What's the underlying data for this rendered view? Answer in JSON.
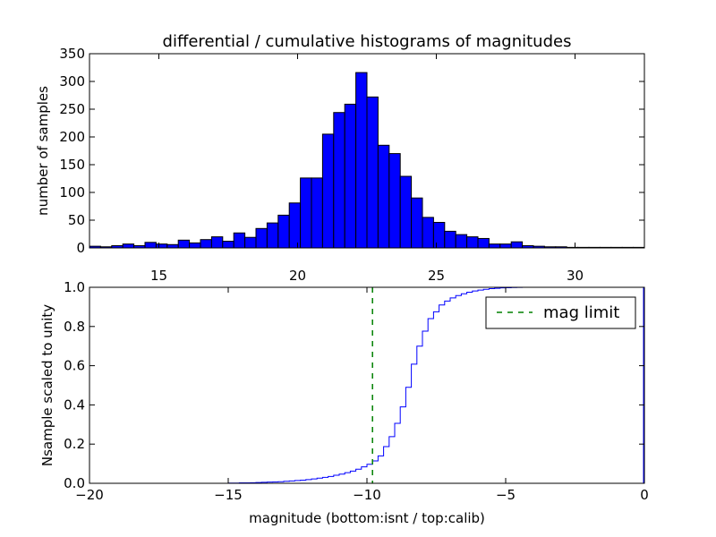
{
  "colors": {
    "bar_fill": "#0000ff",
    "step_line": "#0000ff",
    "mag_limit_line": "#008000",
    "axes": "#000000",
    "background": "#ffffff"
  },
  "chart_data": [
    {
      "type": "bar",
      "title": "differential / cumulative histograms of magnitudes",
      "xlabel": "",
      "ylabel": "number of samples",
      "xlim": [
        12.5,
        32.5
      ],
      "ylim": [
        0,
        350
      ],
      "xticks": [
        15,
        20,
        25,
        30
      ],
      "yticks": [
        0,
        50,
        100,
        150,
        200,
        250,
        300,
        350
      ],
      "xtick_position": "bottom",
      "grid": false,
      "bin_edges": [
        12.5,
        12.9,
        13.3,
        13.7,
        14.1,
        14.5,
        14.9,
        15.3,
        15.7,
        16.1,
        16.5,
        16.9,
        17.3,
        17.7,
        18.1,
        18.5,
        18.9,
        19.3,
        19.7,
        20.1,
        20.5,
        20.9,
        21.3,
        21.7,
        22.1,
        22.5,
        22.9,
        23.3,
        23.7,
        24.1,
        24.5,
        24.9,
        25.3,
        25.7,
        26.1,
        26.5,
        26.9,
        27.3,
        27.7,
        28.1,
        28.5,
        28.9,
        29.3,
        29.7,
        30.1,
        30.5,
        30.9,
        31.3,
        31.7,
        32.1,
        32.5
      ],
      "values": [
        3,
        2,
        4,
        7,
        4,
        10,
        7,
        6,
        14,
        9,
        15,
        20,
        12,
        27,
        19,
        35,
        45,
        59,
        81,
        126,
        126,
        205,
        244,
        259,
        316,
        272,
        185,
        170,
        129,
        90,
        55,
        46,
        30,
        24,
        20,
        17,
        7,
        7,
        11,
        4,
        3,
        2,
        2,
        1,
        1,
        1,
        1,
        1,
        1,
        1
      ]
    },
    {
      "type": "line",
      "title": "",
      "xlabel": "magnitude (bottom:isnt / top:calib)",
      "ylabel": "Nsample scaled to unity",
      "xlim": [
        -20,
        0
      ],
      "ylim": [
        0.0,
        1.0
      ],
      "xticks": [
        -20,
        -15,
        -10,
        -5,
        0
      ],
      "xtick_labels": [
        "−20",
        "−15",
        "−10",
        "−5",
        "0"
      ],
      "yticks": [
        0.0,
        0.2,
        0.4,
        0.6,
        0.8,
        1.0
      ],
      "ytick_labels": [
        "0.0",
        "0.2",
        "0.4",
        "0.6",
        "0.8",
        "1.0"
      ],
      "grid": false,
      "legend_position": "top-right",
      "series": [
        {
          "style": "step",
          "x": [
            -20,
            -19.8,
            -19.6,
            -19.4,
            -19.2,
            -19.0,
            -18.8,
            -18.6,
            -18.4,
            -18.2,
            -18.0,
            -17.8,
            -17.6,
            -17.4,
            -17.2,
            -17.0,
            -16.8,
            -16.6,
            -16.4,
            -16.2,
            -16.0,
            -15.8,
            -15.6,
            -15.4,
            -15.2,
            -15.0,
            -14.8,
            -14.6,
            -14.4,
            -14.2,
            -14.0,
            -13.8,
            -13.6,
            -13.4,
            -13.2,
            -13.0,
            -12.8,
            -12.6,
            -12.4,
            -12.2,
            -12.0,
            -11.8,
            -11.6,
            -11.4,
            -11.2,
            -11.0,
            -10.8,
            -10.6,
            -10.4,
            -10.2,
            -10.0,
            -9.8,
            -9.6,
            -9.4,
            -9.2,
            -9.0,
            -8.8,
            -8.6,
            -8.4,
            -8.2,
            -8.0,
            -7.8,
            -7.6,
            -7.4,
            -7.2,
            -7.0,
            -6.8,
            -6.6,
            -6.4,
            -6.2,
            -6.0,
            -5.8,
            -5.6,
            -5.4,
            -5.2,
            -5.0,
            -4.8,
            -4.6,
            -4.4,
            -4.2,
            -4.0,
            -3.8
          ],
          "y": [
            0.0,
            0.0,
            0.0,
            0.0,
            0.0,
            0.0,
            0.0,
            0.0,
            0.0,
            0.0,
            0.0,
            0.0,
            0.0,
            0.0,
            0.0,
            0.0,
            0.0,
            0.0,
            0.0,
            0.0,
            0.0,
            0.0,
            0.0,
            0.0,
            0.0,
            0.001,
            0.001,
            0.002,
            0.002,
            0.003,
            0.004,
            0.005,
            0.006,
            0.007,
            0.008,
            0.01,
            0.012,
            0.014,
            0.016,
            0.019,
            0.022,
            0.026,
            0.03,
            0.035,
            0.041,
            0.047,
            0.054,
            0.062,
            0.072,
            0.084,
            0.097,
            0.114,
            0.14,
            0.187,
            0.238,
            0.306,
            0.39,
            0.49,
            0.608,
            0.7,
            0.776,
            0.84,
            0.875,
            0.91,
            0.93,
            0.946,
            0.958,
            0.967,
            0.975,
            0.981,
            0.986,
            0.99,
            0.993,
            0.995,
            0.997,
            0.998,
            0.999,
            0.9995,
            1.0,
            1.0,
            1.0,
            1.0
          ]
        },
        {
          "name": "mag limit",
          "style": "dashed-vertical",
          "x": -9.8
        }
      ]
    }
  ]
}
